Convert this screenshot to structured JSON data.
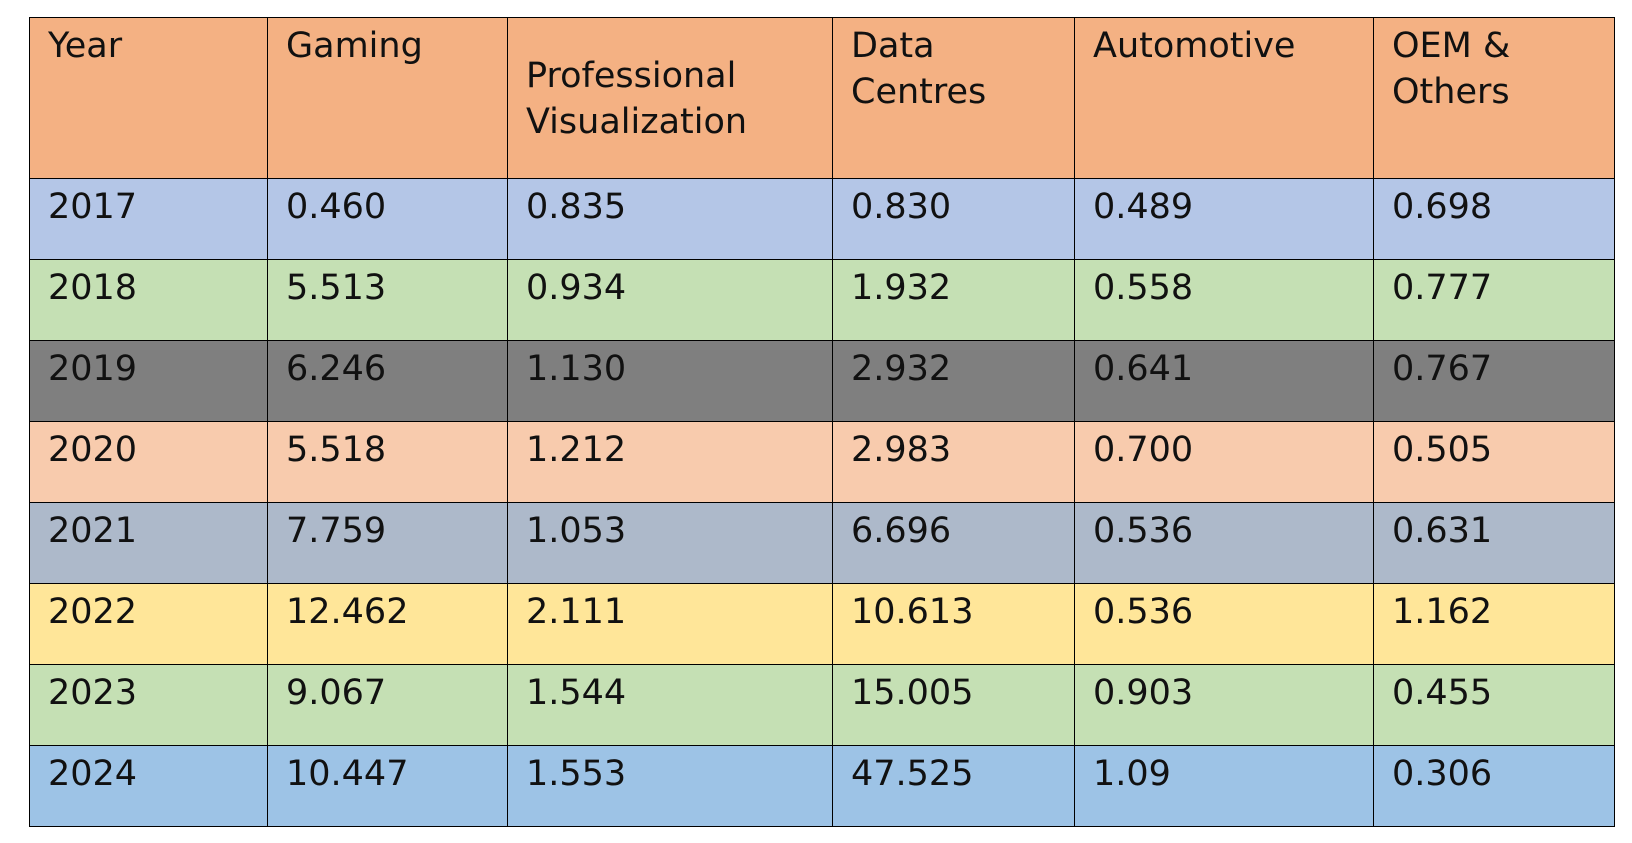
{
  "table": {
    "header": [
      "Year",
      "Gaming",
      "Professional Visualization",
      "Data Centres",
      "Automotive",
      "OEM & Others"
    ],
    "rows": [
      [
        "2017",
        "0.460",
        "0.835",
        "0.830",
        "0.489",
        "0.698"
      ],
      [
        "2018",
        "5.513",
        "0.934",
        "1.932",
        "0.558",
        "0.777"
      ],
      [
        "2019",
        "6.246",
        "1.130",
        "2.932",
        "0.641",
        "0.767"
      ],
      [
        "2020",
        "5.518",
        "1.212",
        "2.983",
        "0.700",
        "0.505"
      ],
      [
        "2021",
        "7.759",
        "1.053",
        "6.696",
        "0.536",
        "0.631"
      ],
      [
        "2022",
        "12.462",
        "2.111",
        "10.613",
        "0.536",
        "1.162"
      ],
      [
        "2023",
        "9.067",
        "1.544",
        "15.005",
        "0.903",
        "0.455"
      ],
      [
        "2024",
        "10.447",
        "1.553",
        "47.525",
        "1.09",
        "0.306"
      ]
    ]
  }
}
